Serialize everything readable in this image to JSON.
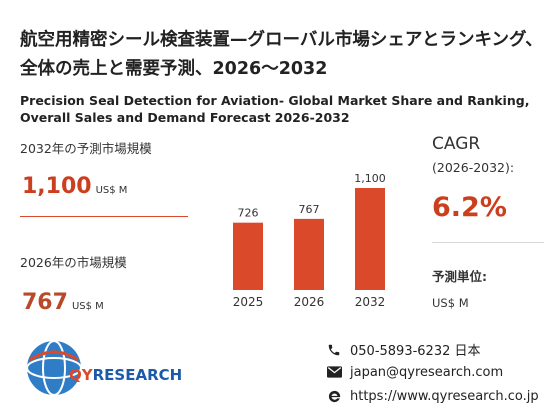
{
  "title_jp": "航空用精密シール検査装置—グローバル市場シェアとランキング、全体の売上と需要予測、2026～2032",
  "title_en": "Precision Seal Detection for Aviation- Global Market Share and Ranking, Overall Sales and Demand Forecast 2026-2032",
  "kpi_2032": {
    "label": "2032年の予測市場規模",
    "value": "1,100",
    "unit": "US$ M"
  },
  "kpi_2026": {
    "label": "2026年の市場規模",
    "value": "767",
    "unit": "US$ M"
  },
  "cagr": {
    "title": "CAGR",
    "period": "(2026-2032):",
    "value": "6.2%"
  },
  "forecast_unit": {
    "label": "予測単位:",
    "value": "US$ M"
  },
  "chart_data": {
    "type": "bar",
    "categories": [
      "2025",
      "2026",
      "2032"
    ],
    "values": [
      726,
      767,
      1100
    ],
    "value_labels": [
      "726",
      "767",
      "1,100"
    ],
    "ylim": [
      0,
      1100
    ],
    "bar_color": "#d9492a"
  },
  "contact": {
    "phone": "050-5893-6232 日本",
    "email": "japan@qyresearch.com",
    "web": "https://www.qyresearch.co.jp"
  },
  "logo": {
    "text_q": "QY",
    "text_rest": "RESEARCH"
  }
}
